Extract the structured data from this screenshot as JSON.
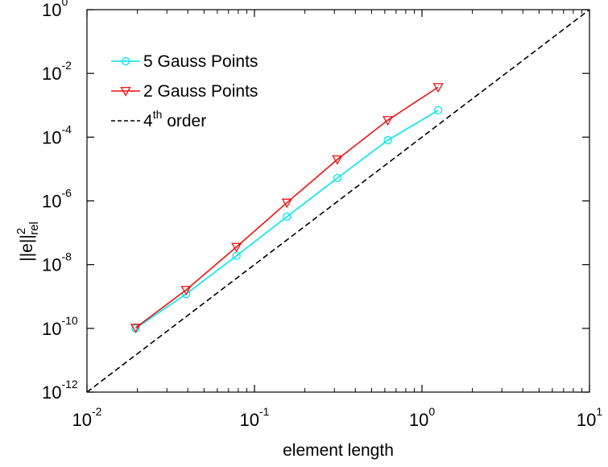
{
  "chart_data": {
    "type": "line",
    "title": "",
    "xlabel": "element length",
    "ylabel": {
      "base": "||e||",
      "sup": "2",
      "sub": "rel"
    },
    "xscale": "log",
    "yscale": "log",
    "xlim": [
      0.01,
      10
    ],
    "ylim": [
      1e-12,
      1
    ],
    "x_ticks": [
      {
        "value": 0.01,
        "base": "10",
        "exp": "-2"
      },
      {
        "value": 0.1,
        "base": "10",
        "exp": "-1"
      },
      {
        "value": 1,
        "base": "10",
        "exp": "0"
      },
      {
        "value": 10,
        "base": "10",
        "exp": "1"
      }
    ],
    "y_ticks": [
      {
        "value": 1e-12,
        "base": "10",
        "exp": "-12"
      },
      {
        "value": 1e-10,
        "base": "10",
        "exp": "-10"
      },
      {
        "value": 1e-08,
        "base": "10",
        "exp": "-8"
      },
      {
        "value": 1e-06,
        "base": "10",
        "exp": "-6"
      },
      {
        "value": 0.0001,
        "base": "10",
        "exp": "-4"
      },
      {
        "value": 0.01,
        "base": "10",
        "exp": "-2"
      },
      {
        "value": 1,
        "base": "10",
        "exp": "0"
      }
    ],
    "grid": false,
    "legend_position": "top-left",
    "series": [
      {
        "name": "5 Gauss Points",
        "color": "#00e5ee",
        "marker": "circle",
        "x": [
          0.01953,
          0.03906,
          0.07813,
          0.15625,
          0.3125,
          0.625,
          1.25
        ],
        "y": [
          1e-10,
          1.2e-09,
          1.9e-08,
          3.2e-07,
          5.2e-06,
          8e-05,
          0.0007
        ]
      },
      {
        "name": "2 Gauss Points",
        "color": "#ee1111",
        "marker": "triangle-down",
        "x": [
          0.01953,
          0.03906,
          0.07813,
          0.15625,
          0.3125,
          0.625,
          1.25
        ],
        "y": [
          1.05e-10,
          1.6e-09,
          3.6e-08,
          8.8e-07,
          2e-05,
          0.00034,
          0.0037
        ]
      },
      {
        "name": "4th order",
        "name_base": "4",
        "name_sup": "th",
        "name_rest": " order",
        "color": "#000000",
        "style": "dashed",
        "x": [
          0.01,
          10
        ],
        "y": [
          1e-12,
          1
        ]
      }
    ]
  }
}
